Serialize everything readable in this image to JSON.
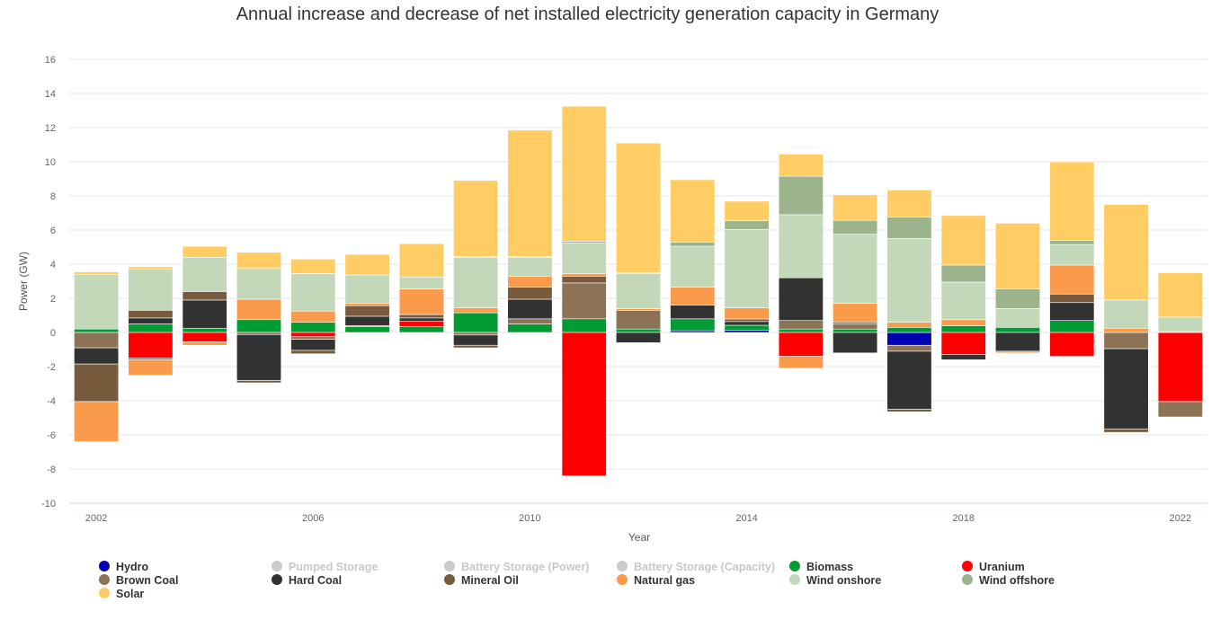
{
  "chart_data": {
    "type": "bar",
    "stacked": true,
    "title": "Annual increase and decrease of net installed electricity generation capacity in Germany",
    "xlabel": "Year",
    "ylabel": "Power (GW)",
    "ylim": [
      -10,
      16
    ],
    "y_ticks": [
      -10,
      -8,
      -6,
      -4,
      -2,
      0,
      2,
      4,
      6,
      8,
      10,
      12,
      14,
      16
    ],
    "x_tick_labels": [
      "2002",
      "2006",
      "2010",
      "2014",
      "2018",
      "2022"
    ],
    "categories": [
      2002,
      2003,
      2004,
      2005,
      2006,
      2007,
      2008,
      2009,
      2010,
      2011,
      2012,
      2013,
      2014,
      2015,
      2016,
      2017,
      2018,
      2019,
      2020,
      2021,
      2022
    ],
    "grid": true,
    "legend_position": "bottom",
    "series": [
      {
        "name": "Hydro",
        "color": "#0000b4",
        "visible": true,
        "values": [
          0,
          0,
          0,
          0,
          0,
          0,
          0,
          0,
          0,
          0,
          0,
          0.1,
          0.12,
          0,
          0,
          -0.75,
          0,
          0,
          0,
          0,
          0
        ]
      },
      {
        "name": "Pumped Storage",
        "color": "#c8c8c8",
        "visible": false,
        "values": [
          0,
          0,
          0,
          0,
          0,
          0,
          0,
          0,
          0,
          0,
          0,
          0,
          0,
          0,
          0,
          0,
          0,
          0,
          0,
          0,
          0
        ]
      },
      {
        "name": "Battery Storage (Power)",
        "color": "#c8c8c8",
        "visible": false,
        "values": [
          0,
          0,
          0,
          0,
          0,
          0,
          0,
          0,
          0,
          0,
          0,
          0,
          0,
          0,
          0,
          0,
          0,
          0,
          0,
          0,
          0
        ]
      },
      {
        "name": "Battery Storage (Capacity)",
        "color": "#c8c8c8",
        "visible": false,
        "values": [
          0,
          0,
          0,
          0,
          0,
          0,
          0,
          0,
          0,
          0,
          0,
          0,
          0,
          0,
          0,
          0,
          0,
          0,
          0,
          0,
          0
        ]
      },
      {
        "name": "Biomass",
        "color": "#009b32",
        "visible": true,
        "values": [
          0.2,
          0.5,
          0.25,
          0.75,
          0.6,
          0.35,
          0.35,
          1.15,
          0.5,
          0.8,
          0.2,
          0.7,
          0.3,
          0.2,
          0.2,
          0.3,
          0.4,
          0.3,
          0.7,
          0,
          0
        ]
      },
      {
        "name": "Uranium",
        "color": "#ff0000",
        "visible": true,
        "values": [
          0,
          -1.5,
          -0.55,
          0,
          -0.25,
          0.05,
          0.3,
          0,
          0,
          -8.4,
          0,
          0,
          0,
          -1.4,
          0,
          0,
          -1.3,
          0,
          -1.4,
          0,
          -4.05
        ]
      },
      {
        "name": "Brown Coal",
        "color": "#8c7355",
        "visible": true,
        "values": [
          -0.9,
          -0.1,
          0,
          -0.12,
          -0.15,
          0,
          0,
          -0.15,
          0.3,
          2.1,
          1.1,
          0,
          0,
          0.5,
          0.3,
          -0.35,
          0,
          0,
          0,
          -0.95,
          -0.9
        ]
      },
      {
        "name": "Hard Coal",
        "color": "#323232",
        "visible": true,
        "values": [
          -0.95,
          0.35,
          1.65,
          -2.7,
          -0.65,
          0.55,
          0.2,
          -0.6,
          1.15,
          0,
          -0.6,
          0.8,
          0.22,
          2.5,
          -1.2,
          -3.4,
          -0.3,
          -1.1,
          1.05,
          -4.7,
          0
        ]
      },
      {
        "name": "Mineral Oil",
        "color": "#785a3c",
        "visible": true,
        "values": [
          -2.2,
          0.45,
          0.5,
          -0.13,
          -0.2,
          0.62,
          0.2,
          -0.15,
          0.7,
          0.4,
          0,
          0,
          0.15,
          0,
          0.1,
          -0.15,
          0,
          0,
          0.5,
          -0.2,
          0
        ]
      },
      {
        "name": "Natural gas",
        "color": "#fa9b4b",
        "visible": true,
        "values": [
          -2.35,
          -0.9,
          -0.2,
          1.2,
          0.65,
          0.15,
          1.5,
          0.3,
          0.65,
          0.15,
          0.1,
          1.05,
          0.65,
          -0.7,
          1.1,
          0.3,
          0.35,
          -0.1,
          1.7,
          0.25,
          0.05
        ]
      },
      {
        "name": "Wind onshore",
        "color": "#c3d7b9",
        "visible": true,
        "values": [
          3.2,
          2.4,
          2.0,
          1.8,
          2.2,
          1.65,
          0.7,
          2.95,
          1.1,
          1.8,
          2.05,
          2.4,
          4.6,
          3.7,
          4.05,
          4.9,
          2.2,
          1.1,
          1.2,
          1.65,
          0.85
        ]
      },
      {
        "name": "Wind offshore",
        "color": "#9bb48c",
        "visible": true,
        "values": [
          0,
          0,
          0,
          0,
          0,
          0,
          0,
          0.05,
          0.05,
          0.1,
          0.05,
          0.25,
          0.5,
          2.25,
          0.82,
          1.25,
          1.0,
          1.15,
          0.25,
          0,
          0
        ]
      },
      {
        "name": "Solar",
        "color": "#ffcd64",
        "visible": true,
        "values": [
          0.15,
          0.15,
          0.65,
          0.95,
          0.85,
          1.2,
          1.95,
          4.45,
          7.4,
          7.9,
          7.6,
          3.65,
          1.15,
          1.3,
          1.5,
          1.6,
          2.9,
          3.85,
          4.6,
          5.6,
          2.6
        ]
      }
    ]
  }
}
